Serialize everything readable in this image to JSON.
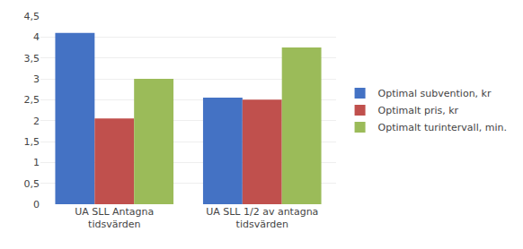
{
  "chart_data": {
    "type": "bar",
    "categories": [
      "UA SLL Antagna\ntidsvärden",
      "UA SLL 1/2 av antagna\ntidsvärden"
    ],
    "series": [
      {
        "name": "Optimal subvention, kr",
        "color": "#4472C4",
        "values": [
          4.1,
          2.55
        ]
      },
      {
        "name": "Optimalt pris, kr",
        "color": "#C0504D",
        "values": [
          2.05,
          2.5
        ]
      },
      {
        "name": "Optimalt turintervall, min.",
        "color": "#9BBB59",
        "values": [
          3.0,
          3.75
        ]
      }
    ],
    "ylim": [
      0,
      4.5
    ],
    "yticks": [
      0,
      {
        "value": 0.5,
        "label": "0,5"
      },
      1,
      {
        "value": 1.5,
        "label": "1,5"
      },
      2,
      {
        "value": 2.5,
        "label": "2,5"
      },
      3,
      {
        "value": 3.5,
        "label": "3,5"
      },
      4,
      {
        "value": 4.5,
        "label": "4,5"
      }
    ],
    "grid": true,
    "legend": "right"
  }
}
